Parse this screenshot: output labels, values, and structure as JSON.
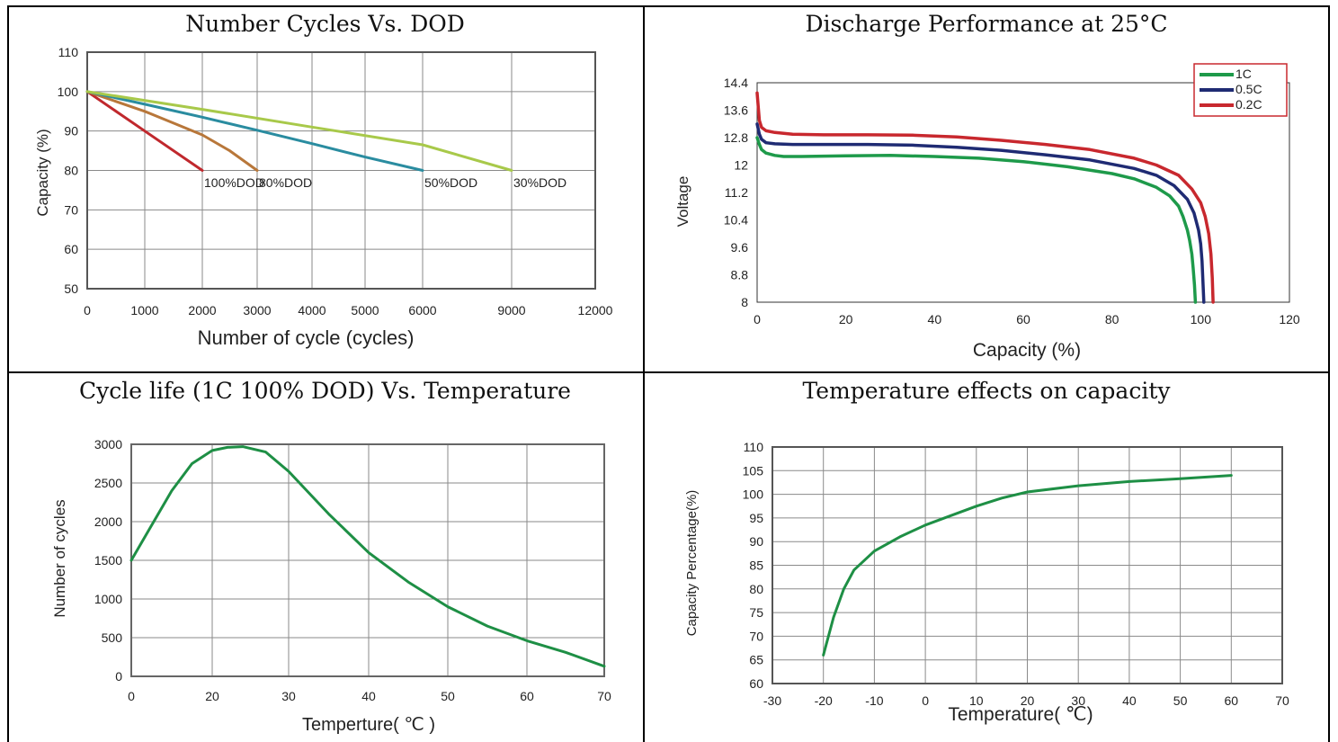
{
  "chart_data": [
    {
      "type": "line",
      "title": "Number Cycles Vs. DOD",
      "xlabel": "Number of cycle (cycles)",
      "ylabel": "Capacity (%)",
      "xticks": [
        0,
        1000,
        2000,
        3000,
        4000,
        5000,
        6000,
        9000,
        12000
      ],
      "yticks": [
        50,
        60,
        70,
        80,
        90,
        100,
        110
      ],
      "ylim": [
        50,
        110
      ],
      "grid": true,
      "series": [
        {
          "name": "100%DOD",
          "color": "#c0282d",
          "x": [
            0,
            1000,
            2000
          ],
          "y": [
            100,
            90,
            80
          ]
        },
        {
          "name": "80%DOD",
          "color": "#b8773a",
          "x": [
            0,
            500,
            1000,
            1500,
            2000,
            2500,
            3000
          ],
          "y": [
            100,
            97.5,
            95,
            92,
            89,
            85,
            80
          ]
        },
        {
          "name": "50%DOD",
          "color": "#2a8ca0",
          "x": [
            0,
            1000,
            2000,
            3000,
            4000,
            5000,
            6000
          ],
          "y": [
            100,
            96.8,
            93.5,
            90.2,
            86.8,
            83.4,
            80
          ]
        },
        {
          "name": "30%DOD",
          "color": "#a8c94a",
          "x": [
            0,
            2000,
            4000,
            6000,
            9000
          ],
          "y": [
            100,
            95.5,
            91,
            86.5,
            80
          ]
        }
      ]
    },
    {
      "type": "line",
      "title": "Discharge Performance at 25°C",
      "xlabel": "Capacity (%)",
      "ylabel": "Voltage",
      "xticks": [
        0,
        20,
        40,
        60,
        80,
        100,
        120
      ],
      "yticks": [
        8,
        8.8,
        9.6,
        10.4,
        11.2,
        12,
        12.8,
        13.6,
        14.4
      ],
      "xlim": [
        0,
        120
      ],
      "ylim": [
        8,
        14.4
      ],
      "legend": "top-right",
      "series": [
        {
          "name": "1C",
          "color": "#1e9a4a",
          "x": [
            0,
            0.5,
            1,
            2,
            4,
            6,
            10,
            20,
            30,
            40,
            50,
            60,
            70,
            80,
            85,
            90,
            93,
            95,
            96,
            97,
            97.5,
            98,
            98.3,
            98.6,
            98.8
          ],
          "y": [
            12.8,
            12.6,
            12.45,
            12.35,
            12.28,
            12.25,
            12.25,
            12.27,
            12.28,
            12.25,
            12.2,
            12.1,
            11.95,
            11.75,
            11.6,
            11.35,
            11.1,
            10.8,
            10.5,
            10.1,
            9.8,
            9.4,
            9.0,
            8.5,
            8
          ]
        },
        {
          "name": "0.5C",
          "color": "#1f2b73",
          "x": [
            0,
            0.5,
            1,
            2,
            4,
            8,
            15,
            25,
            35,
            45,
            55,
            65,
            75,
            85,
            90,
            94,
            97,
            98.5,
            99.5,
            100,
            100.3,
            100.5,
            100.7
          ],
          "y": [
            13.2,
            12.9,
            12.75,
            12.65,
            12.62,
            12.6,
            12.6,
            12.6,
            12.58,
            12.52,
            12.43,
            12.3,
            12.15,
            11.9,
            11.7,
            11.4,
            11.0,
            10.6,
            10.1,
            9.7,
            9.2,
            8.6,
            8
          ]
        },
        {
          "name": "0.2C",
          "color": "#c8282e",
          "x": [
            0,
            0.5,
            1,
            2,
            4,
            8,
            15,
            25,
            35,
            45,
            55,
            65,
            75,
            85,
            90,
            95,
            98,
            100,
            101,
            101.8,
            102.3,
            102.6,
            102.8
          ],
          "y": [
            14.1,
            13.3,
            13.1,
            13.0,
            12.95,
            12.9,
            12.88,
            12.88,
            12.87,
            12.82,
            12.72,
            12.6,
            12.45,
            12.2,
            12.0,
            11.7,
            11.3,
            10.9,
            10.5,
            10.0,
            9.4,
            8.7,
            8
          ]
        }
      ]
    },
    {
      "type": "line",
      "title": "Cycle life (1C 100% DOD) Vs. Temperature",
      "xlabel": "Temperture( ℃ )",
      "ylabel": "Number of cycles",
      "xticks": [
        0,
        20,
        30,
        40,
        50,
        60,
        70
      ],
      "yticks": [
        0,
        500,
        1000,
        1500,
        2000,
        2500,
        3000
      ],
      "ylim": [
        0,
        3000
      ],
      "grid": true,
      "series": [
        {
          "name": "",
          "color": "#1e8f45",
          "x": [
            0,
            5,
            10,
            15,
            20,
            22,
            24,
            27,
            30,
            35,
            40,
            45,
            50,
            55,
            60,
            65,
            70
          ],
          "y": [
            1500,
            1950,
            2400,
            2750,
            2920,
            2960,
            2970,
            2900,
            2650,
            2100,
            1600,
            1220,
            900,
            650,
            460,
            310,
            130
          ]
        }
      ]
    },
    {
      "type": "line",
      "title": "Temperature effects on capacity",
      "xlabel": "Temperature( ℃)",
      "ylabel": "Capacity Percentage(%)",
      "xticks": [
        -30,
        -20,
        -10,
        0,
        10,
        20,
        30,
        40,
        50,
        60,
        70
      ],
      "yticks": [
        60,
        65,
        70,
        75,
        80,
        85,
        90,
        95,
        100,
        105,
        110
      ],
      "xlim": [
        -30,
        70
      ],
      "ylim": [
        60,
        110
      ],
      "grid": true,
      "series": [
        {
          "name": "",
          "color": "#1e8f45",
          "x": [
            -20,
            -18,
            -16,
            -14,
            -12,
            -10,
            -5,
            0,
            5,
            10,
            15,
            20,
            30,
            40,
            50,
            60
          ],
          "y": [
            66,
            74,
            80,
            84,
            86,
            88,
            91,
            93.5,
            95.5,
            97.5,
            99.2,
            100.5,
            101.8,
            102.7,
            103.3,
            104
          ]
        }
      ]
    }
  ]
}
